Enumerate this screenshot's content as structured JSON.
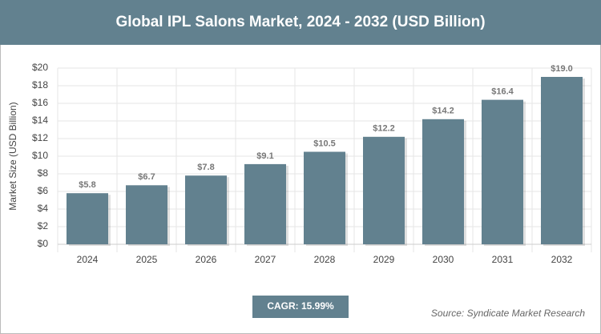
{
  "chart_data": {
    "type": "bar",
    "title": "Global IPL Salons Market, 2024 - 2032 (USD Billion)",
    "y_axis_label": "Market Size (USD Billion)",
    "categories": [
      "2024",
      "2025",
      "2026",
      "2027",
      "2028",
      "2029",
      "2030",
      "2031",
      "2032"
    ],
    "values": [
      5.8,
      6.7,
      7.8,
      9.1,
      10.5,
      12.2,
      14.2,
      16.4,
      19.0
    ],
    "value_labels": [
      "$5.8",
      "$6.7",
      "$7.8",
      "$9.1",
      "$10.5",
      "$12.2",
      "$14.2",
      "$16.4",
      "$19.0"
    ],
    "color": "#62818f",
    "ylim": [
      0,
      20
    ],
    "yticks": [
      {
        "value": 0,
        "label": "$0"
      },
      {
        "value": 2,
        "label": "$2"
      },
      {
        "value": 4,
        "label": "$4"
      },
      {
        "value": 6,
        "label": "$6"
      },
      {
        "value": 8,
        "label": "$8"
      },
      {
        "value": 10,
        "label": "$10"
      },
      {
        "value": 12,
        "label": "$12"
      },
      {
        "value": 14,
        "label": "$14"
      },
      {
        "value": 16,
        "label": "$16"
      },
      {
        "value": 18,
        "label": "$18"
      },
      {
        "value": 20,
        "label": "$20"
      }
    ],
    "grid": true,
    "cagr_label": "CAGR: 15.99%",
    "source": "Source: Syndicate Market Research"
  }
}
